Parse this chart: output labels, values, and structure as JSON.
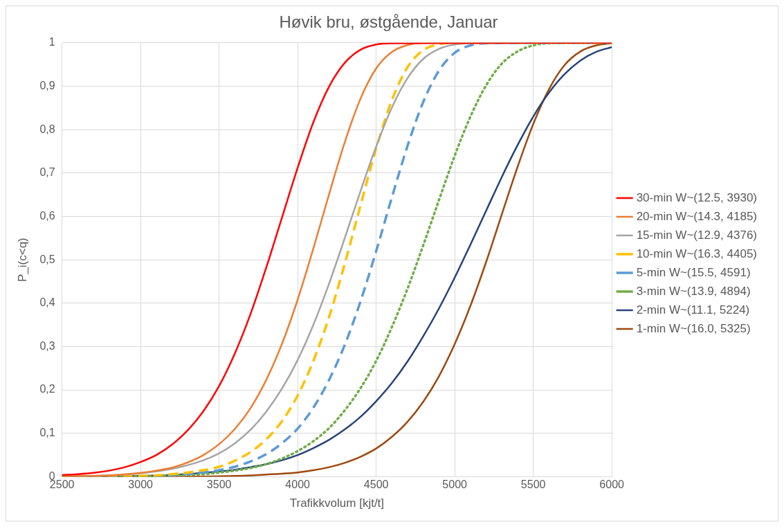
{
  "chart_data": {
    "type": "line",
    "title": "Høvik bru, østgående, Januar",
    "xlabel": "Trafikkvolum [kjt/t]",
    "ylabel": "P_i(c<q)",
    "xlim": [
      2500,
      6000
    ],
    "xticks": [
      2500,
      3000,
      3500,
      4000,
      4500,
      5000,
      5500,
      6000
    ],
    "ylim": [
      0,
      1
    ],
    "yticks": [
      0,
      {
        "value": 0.1,
        "label": "0,1"
      },
      {
        "value": 0.2,
        "label": "0,2"
      },
      {
        "value": 0.3,
        "label": "0,3"
      },
      {
        "value": 0.4,
        "label": "0,4"
      },
      {
        "value": 0.5,
        "label": "0,5"
      },
      {
        "value": 0.6,
        "label": "0,6"
      },
      {
        "value": 0.7,
        "label": "0,7"
      },
      {
        "value": 0.8,
        "label": "0,8"
      },
      {
        "value": 0.9,
        "label": "0,9"
      },
      1
    ],
    "grid": true,
    "legend": "right",
    "marker": "none",
    "series": [
      {
        "name": "30-min W~(12.5, 3930)",
        "color": "#ff0000",
        "line_style": "solid",
        "x": [
          2500,
          2600,
          2700,
          2800,
          2900,
          3000,
          3100,
          3200,
          3300,
          3400,
          3500,
          3600,
          3700,
          3800,
          3900,
          4000,
          4100,
          4200,
          4300,
          4400,
          4500,
          4600,
          6000
        ],
        "values": [
          0.004,
          0.006,
          0.009,
          0.014,
          0.022,
          0.034,
          0.05,
          0.074,
          0.107,
          0.151,
          0.209,
          0.284,
          0.375,
          0.482,
          0.597,
          0.712,
          0.817,
          0.899,
          0.954,
          0.984,
          0.996,
          0.999,
          1
        ]
      },
      {
        "name": "20-min W~(14.3, 4185)",
        "color": "#ed7d31",
        "line_style": "solid",
        "x": [
          2500,
          2800,
          3000,
          3100,
          3200,
          3300,
          3400,
          3500,
          3600,
          3700,
          3800,
          3900,
          4000,
          4100,
          4200,
          4300,
          4400,
          4500,
          4600,
          4700,
          4800,
          6000
        ],
        "values": [
          0.001,
          0.003,
          0.009,
          0.014,
          0.021,
          0.033,
          0.05,
          0.075,
          0.11,
          0.158,
          0.223,
          0.306,
          0.408,
          0.526,
          0.651,
          0.771,
          0.871,
          0.941,
          0.979,
          0.995,
          1,
          1
        ]
      },
      {
        "name": "15-min W~(12.9, 4376)",
        "color": "#a5a5a5",
        "line_style": "solid",
        "x": [
          2500,
          2800,
          3000,
          3200,
          3400,
          3500,
          3600,
          3700,
          3800,
          3900,
          4000,
          4100,
          4200,
          4300,
          4400,
          4500,
          4600,
          4700,
          4800,
          4900,
          5000,
          5100,
          6000
        ],
        "values": [
          0.001,
          0.003,
          0.008,
          0.018,
          0.038,
          0.054,
          0.077,
          0.108,
          0.15,
          0.203,
          0.269,
          0.35,
          0.445,
          0.55,
          0.658,
          0.761,
          0.851,
          0.919,
          0.963,
          0.986,
          0.996,
          0.999,
          1
        ]
      },
      {
        "name": "10-min W~(16.3, 4405)",
        "color": "#ffc000",
        "line_style": "dashed",
        "x": [
          2500,
          3000,
          3200,
          3400,
          3500,
          3600,
          3700,
          3800,
          3900,
          4000,
          4100,
          4200,
          4300,
          4400,
          4500,
          4600,
          4700,
          4800,
          4900,
          5000,
          6000
        ],
        "values": [
          0,
          0.002,
          0.006,
          0.015,
          0.023,
          0.037,
          0.057,
          0.086,
          0.128,
          0.187,
          0.267,
          0.368,
          0.491,
          0.625,
          0.757,
          0.868,
          0.944,
          0.983,
          0.997,
          1,
          1
        ]
      },
      {
        "name": "5-min W~(15.5, 4591)",
        "color": "#5b9bd5",
        "line_style": "dashed",
        "x": [
          2500,
          3000,
          3200,
          3400,
          3500,
          3600,
          3700,
          3800,
          3900,
          4000,
          4100,
          4200,
          4300,
          4400,
          4500,
          4600,
          4700,
          4800,
          4900,
          5000,
          5100,
          5200,
          6000
        ],
        "values": [
          0,
          0.001,
          0.004,
          0.01,
          0.015,
          0.023,
          0.035,
          0.052,
          0.077,
          0.111,
          0.159,
          0.223,
          0.304,
          0.404,
          0.52,
          0.644,
          0.763,
          0.864,
          0.936,
          0.977,
          0.994,
          0.999,
          1
        ]
      },
      {
        "name": "3-min W~(13.9, 4894)",
        "color": "#70ad47",
        "line_style": "dotted",
        "x": [
          2500,
          3000,
          3200,
          3400,
          3600,
          3700,
          3800,
          3900,
          4000,
          4100,
          4200,
          4300,
          4400,
          4500,
          4600,
          4700,
          4800,
          4900,
          5000,
          5100,
          5200,
          5300,
          5400,
          5500,
          5600,
          6000
        ],
        "values": [
          0,
          0.001,
          0.003,
          0.006,
          0.014,
          0.02,
          0.029,
          0.042,
          0.059,
          0.082,
          0.112,
          0.153,
          0.204,
          0.267,
          0.345,
          0.434,
          0.534,
          0.638,
          0.74,
          0.83,
          0.902,
          0.952,
          0.98,
          0.994,
          0.999,
          1
        ]
      },
      {
        "name": "2-min W~(11.1, 5224)",
        "color": "#264478",
        "line_style": "solid",
        "x": [
          2500,
          2800,
          3000,
          3200,
          3400,
          3600,
          3700,
          3800,
          3900,
          4000,
          4100,
          4200,
          4300,
          4400,
          4500,
          4600,
          4700,
          4800,
          4900,
          5000,
          5100,
          5200,
          5300,
          5400,
          5500,
          5600,
          5700,
          5800,
          5900,
          6000
        ],
        "values": [
          0,
          0.001,
          0.002,
          0.004,
          0.009,
          0.016,
          0.022,
          0.029,
          0.038,
          0.05,
          0.066,
          0.085,
          0.109,
          0.138,
          0.174,
          0.216,
          0.266,
          0.324,
          0.388,
          0.459,
          0.535,
          0.613,
          0.691,
          0.764,
          0.83,
          0.885,
          0.928,
          0.959,
          0.979,
          0.99
        ]
      },
      {
        "name": "1-min W~(16.0, 5325)",
        "color": "#9e480e",
        "line_style": "solid",
        "x": [
          2500,
          3000,
          3500,
          3700,
          3800,
          3900,
          4000,
          4100,
          4200,
          4300,
          4400,
          4500,
          4600,
          4700,
          4800,
          4900,
          5000,
          5100,
          5200,
          5300,
          5400,
          5500,
          5600,
          5700,
          5800,
          5900,
          6000
        ],
        "values": [
          0,
          0,
          0.001,
          0.003,
          0.005,
          0.007,
          0.01,
          0.015,
          0.022,
          0.032,
          0.046,
          0.065,
          0.092,
          0.127,
          0.173,
          0.232,
          0.306,
          0.394,
          0.495,
          0.605,
          0.714,
          0.813,
          0.893,
          0.949,
          0.98,
          0.994,
          0.999
        ]
      }
    ]
  }
}
